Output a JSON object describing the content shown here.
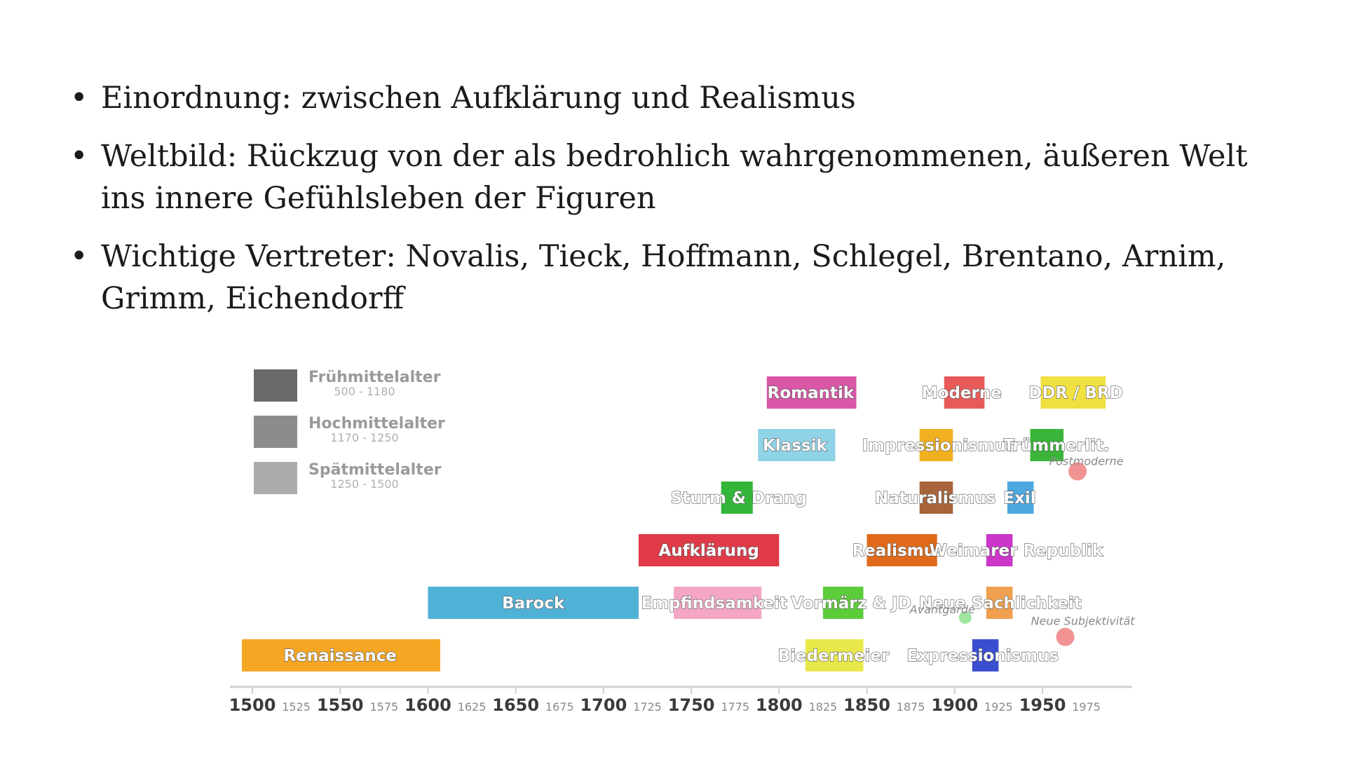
{
  "bullets": [
    {
      "text": "Einordnung: zwischen Aufklärung und Realismus"
    },
    {
      "text": "Weltbild: Rückzug von der als bedrohlich wahrgenommenen, äußeren Welt ins innere Gefühlsleben der Figuren"
    },
    {
      "text": "Wichtige Vertreter: Novalis, Tieck, Hoffmann, Schlegel, Brentano, Arnim, Grimm, Eichendorff"
    }
  ],
  "bullet_symbol": "•",
  "timeline": {
    "legend": [
      {
        "name": "Frühmittelalter",
        "range": "500 - 1180",
        "color": "#6a6a6a"
      },
      {
        "name": "Hochmittelalter",
        "range": "1170 - 1250",
        "color": "#8c8c8c"
      },
      {
        "name": "Spätmittelalter",
        "range": "1250 - 1500",
        "color": "#ababab"
      }
    ],
    "axis": {
      "min": 1500,
      "max": 2010,
      "major_ticks": [
        "1500",
        "1550",
        "1600",
        "1650",
        "1700",
        "1750",
        "1800",
        "1850",
        "1900",
        "1950"
      ],
      "minor_ticks": [
        "1525",
        "1575",
        "1625",
        "1675",
        "1725",
        "1775",
        "1825",
        "1875",
        "1925",
        "1975"
      ]
    },
    "epochs": [
      {
        "label": "Renaissance",
        "row": 0,
        "start": 1494,
        "end": 1607,
        "color": "#f5a623",
        "label_center": 1550
      },
      {
        "label": "Barock",
        "row": 1,
        "start": 1600,
        "end": 1720,
        "color": "#4fb1d6",
        "label_center": 1660
      },
      {
        "label": "Aufklärung",
        "row": 2,
        "start": 1720,
        "end": 1800,
        "color": "#e03a48",
        "label_center": 1760
      },
      {
        "label": "Empfindsamkeit",
        "row": 1,
        "start": 1740,
        "end": 1790,
        "color": "#f4a6c4",
        "label_center": 1763
      },
      {
        "label": "Sturm & Drang",
        "row": 3,
        "start": 1767,
        "end": 1785,
        "color": "#33b53a",
        "label_center": 1777
      },
      {
        "label": "Klassik",
        "row": 4,
        "start": 1788,
        "end": 1832,
        "color": "#8fd3e6",
        "label_center": 1809
      },
      {
        "label": "Romantik",
        "row": 5,
        "start": 1793,
        "end": 1844,
        "color": "#d957a6",
        "label_center": 1818
      },
      {
        "label": "Biedermeier",
        "row": 0,
        "start": 1815,
        "end": 1848,
        "color": "#e8e84a",
        "label_center": 1831
      },
      {
        "label": "Vormärz & JD",
        "row": 1,
        "start": 1825,
        "end": 1848,
        "color": "#5ccc3a",
        "label_center": 1841
      },
      {
        "label": "Realismus",
        "row": 2,
        "start": 1850,
        "end": 1890,
        "color": "#e06a1a",
        "label_center": 1868
      },
      {
        "label": "Naturalismus",
        "row": 3,
        "start": 1880,
        "end": 1899,
        "color": "#a8643a",
        "label_center": 1889
      },
      {
        "label": "Impressionismus",
        "row": 4,
        "start": 1880,
        "end": 1899,
        "color": "#f0b020",
        "label_center": 1891
      },
      {
        "label": "Moderne",
        "row": 5,
        "start": 1894,
        "end": 1917,
        "color": "#e85a5a",
        "label_center": 1904
      },
      {
        "label": "Expressionismus",
        "row": 0,
        "start": 1910,
        "end": 1925,
        "color": "#3a4ed0",
        "label_center": 1916
      },
      {
        "label": "Neue Sachlichkeit",
        "row": 1,
        "start": 1918,
        "end": 1933,
        "color": "#f0a050",
        "label_center": 1926
      },
      {
        "label": "Weimarer Republik",
        "row": 2,
        "start": 1918,
        "end": 1933,
        "color": "#c936c8",
        "label_center": 1935
      },
      {
        "label": "Exil",
        "row": 3,
        "start": 1930,
        "end": 1945,
        "color": "#4da8e0",
        "label_center": 1937
      },
      {
        "label": "Trümmerlit.",
        "row": 4,
        "start": 1943,
        "end": 1962,
        "color": "#3ab53a",
        "label_center": 1958
      },
      {
        "label": "DDR / BRD",
        "row": 5,
        "start": 1949,
        "end": 1986,
        "color": "#f0e040",
        "label_center": 1969
      }
    ],
    "dots": [
      {
        "year": 1970,
        "row": 3.5,
        "color": "#f08080"
      },
      {
        "year": 1906,
        "row": 0.72,
        "color": "#90e090"
      },
      {
        "year": 1963,
        "row": 0.35,
        "color": "#f08080"
      }
    ],
    "annotations": [
      {
        "text": "Postmoderne",
        "year": 1975,
        "row": 3.62
      },
      {
        "text": "Avantgarde",
        "year": 1893,
        "row": 0.8
      },
      {
        "text": "Neue Subjektivität",
        "year": 1973,
        "row": 0.58
      }
    ]
  }
}
